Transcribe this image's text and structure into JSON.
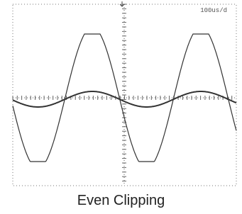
{
  "screen": {
    "timebase": "100us/d"
  },
  "caption": "Even Clipping"
}
